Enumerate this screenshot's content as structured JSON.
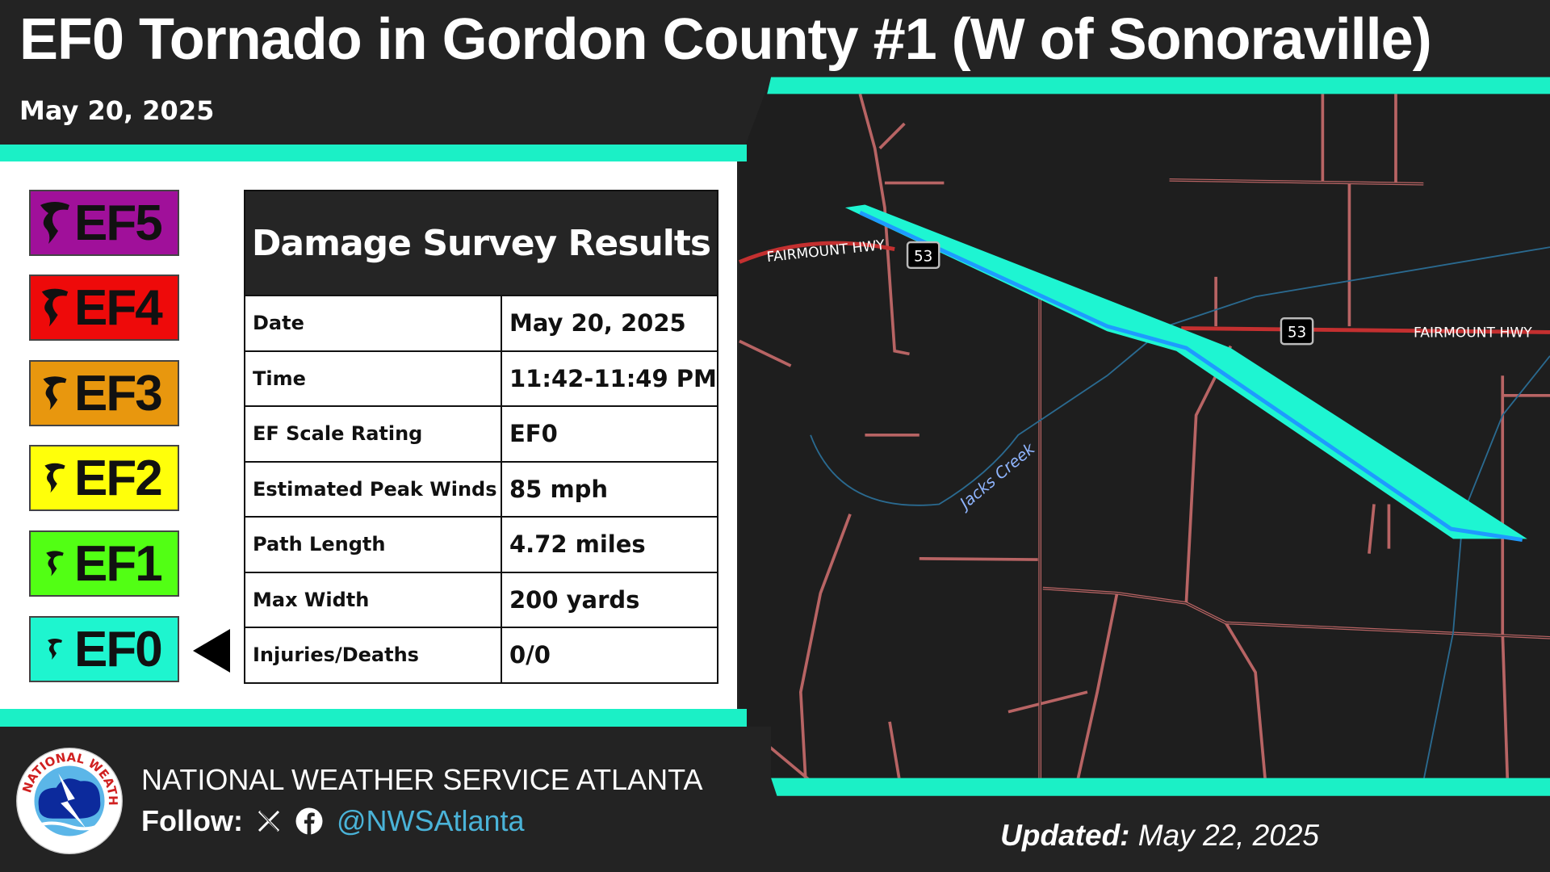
{
  "header": {
    "title": "EF0 Tornado in Gordon County #1 (W of Sonoraville)",
    "date": "May 20, 2025"
  },
  "colors": {
    "accent": "#1bf0c6",
    "track": "#1ef5d2",
    "track_center": "#1e9bff",
    "road": "#b86464",
    "ef5": "#a0109a",
    "ef4": "#ee0a0a",
    "ef3": "#e8970e",
    "ef2": "#ffff0a",
    "ef1": "#52ff14",
    "ef0": "#1ef5cf"
  },
  "ef_scale": [
    {
      "label": "EF5",
      "color": "#a0109a"
    },
    {
      "label": "EF4",
      "color": "#ee0a0a"
    },
    {
      "label": "EF3",
      "color": "#e8970e"
    },
    {
      "label": "EF2",
      "color": "#ffff0a"
    },
    {
      "label": "EF1",
      "color": "#52ff14"
    },
    {
      "label": "EF0",
      "color": "#1ef5cf",
      "selected": true
    }
  ],
  "survey": {
    "heading": "Damage Survey Results",
    "rows": [
      {
        "label": "Date",
        "value": "May 20, 2025"
      },
      {
        "label": "Time",
        "value": "11:42-11:49 PM"
      },
      {
        "label": "EF Scale Rating",
        "value": "EF0"
      },
      {
        "label": "Estimated Peak Winds",
        "value": "85 mph"
      },
      {
        "label": "Path Length",
        "value": "4.72 miles"
      },
      {
        "label": "Max Width",
        "value": "200 yards"
      },
      {
        "label": "Injuries/Deaths",
        "value": "0/0"
      }
    ]
  },
  "map": {
    "road_label_1": "FAIRMOUNT HWY",
    "road_label_2": "FAIRMOUNT HWY",
    "shield_1": "53",
    "shield_2": "53",
    "creek": "Jacks Creek"
  },
  "footer": {
    "office": "NATIONAL WEATHER SERVICE ATLANTA",
    "follow_label": "Follow:",
    "handle": "@NWSAtlanta",
    "updated_label": "Updated:",
    "updated_date": "May 22, 2025",
    "icons": [
      "x-icon",
      "facebook-icon"
    ],
    "logo": "NATIONAL WEATHER SERVICE"
  }
}
